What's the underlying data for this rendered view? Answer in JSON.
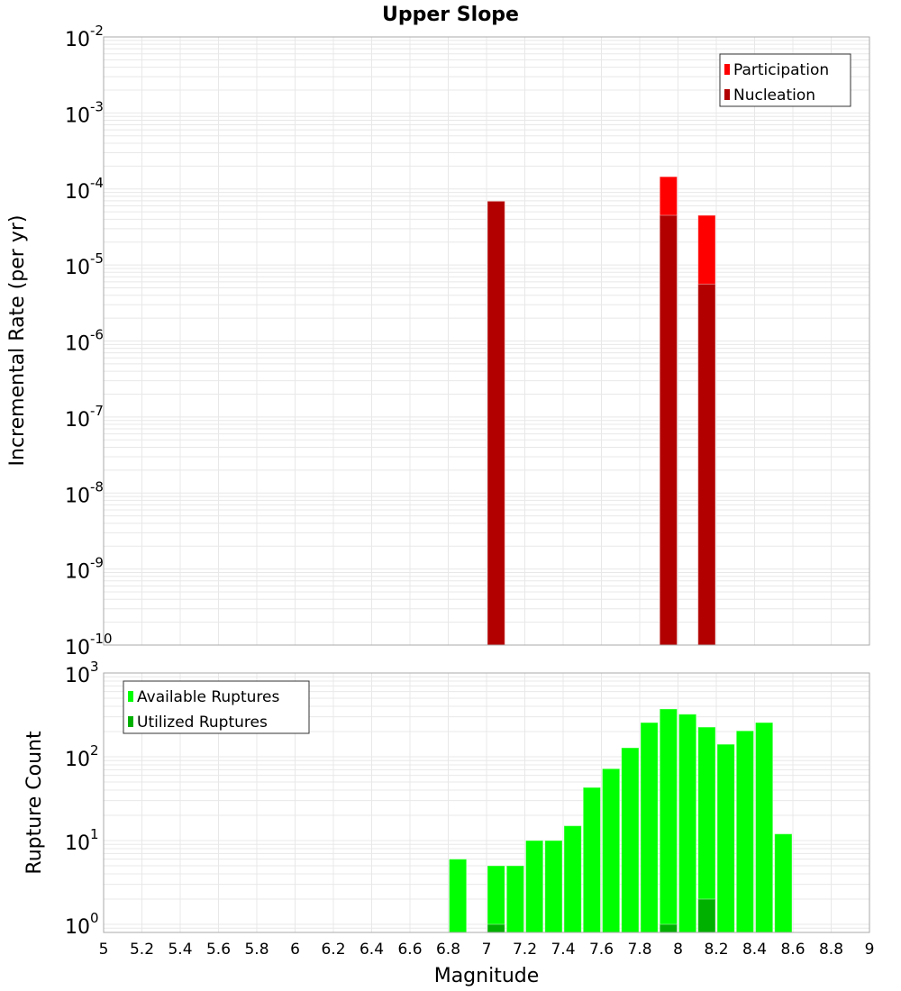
{
  "chart_data": [
    {
      "type": "bar",
      "title": "Upper Slope",
      "xlabel": "",
      "ylabel": "Incremental Rate (per yr)",
      "yscale": "log",
      "ylim": [
        1e-10,
        0.01
      ],
      "xlim": [
        5,
        9
      ],
      "y_tick_exponents": [
        -10,
        -9,
        -8,
        -7,
        -6,
        -5,
        -4,
        -3,
        -2
      ],
      "bin_width": 0.1,
      "legend": "top-right",
      "series": [
        {
          "name": "Participation",
          "color": "#ff0000",
          "x": [
            7.05,
            7.95,
            8.15
          ],
          "values": [
            6.9e-05,
            0.000145,
            4.5e-05
          ]
        },
        {
          "name": "Nucleation",
          "color": "#b20000",
          "x": [
            7.05,
            7.95,
            8.15
          ],
          "values": [
            6.9e-05,
            4.5e-05,
            5.6e-06
          ]
        }
      ]
    },
    {
      "type": "bar",
      "xlabel": "Magnitude",
      "ylabel": "Rupture Count",
      "yscale": "log",
      "ylim": [
        0.8,
        1000
      ],
      "xlim": [
        5,
        9
      ],
      "y_tick_exponents": [
        0,
        1,
        2,
        3
      ],
      "x_ticks": [
        "5",
        "5.2",
        "5.4",
        "5.6",
        "5.8",
        "6",
        "6.2",
        "6.4",
        "6.6",
        "6.8",
        "7",
        "7.2",
        "7.4",
        "7.6",
        "7.8",
        "8",
        "8.2",
        "8.4",
        "8.6",
        "8.8",
        "9"
      ],
      "bin_width": 0.1,
      "legend": "top-left",
      "series": [
        {
          "name": "Available Ruptures",
          "color": "#00ff00",
          "x": [
            6.85,
            7.05,
            7.15,
            7.25,
            7.35,
            7.45,
            7.55,
            7.65,
            7.75,
            7.85,
            7.95,
            8.05,
            8.15,
            8.25,
            8.35,
            8.45,
            8.55
          ],
          "values": [
            6,
            5,
            5,
            10,
            10,
            15,
            43,
            72,
            128,
            256,
            372,
            322,
            226,
            141,
            204,
            256,
            12
          ]
        },
        {
          "name": "Utilized Ruptures",
          "color": "#00b000",
          "x": [
            7.05,
            7.95,
            8.15
          ],
          "values": [
            1,
            1,
            2
          ]
        }
      ]
    }
  ]
}
